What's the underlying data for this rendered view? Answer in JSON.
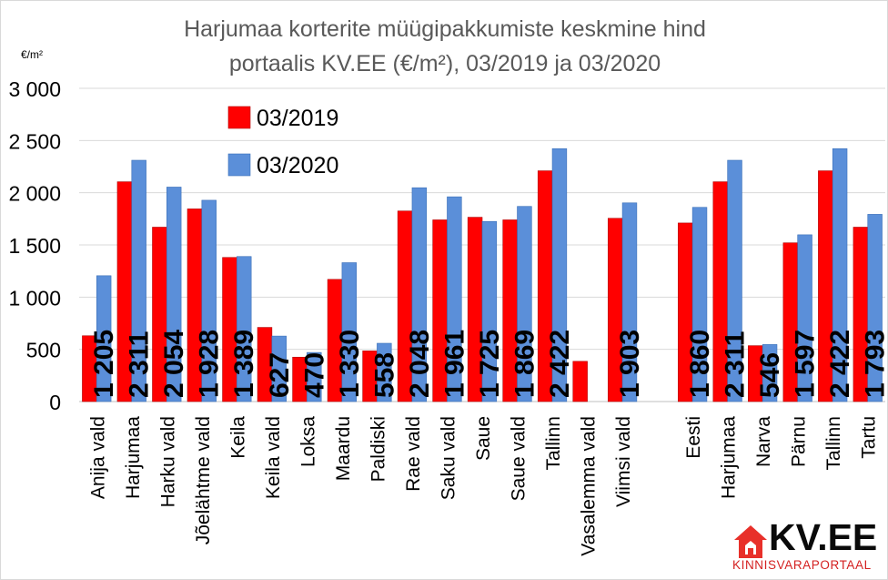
{
  "chart_data": {
    "type": "bar",
    "title_lines": [
      "Harjumaa korterite müügipakkumiste keskmine hind",
      "portaalis KV.EE (€/m²), 03/2019 ja 03/2020"
    ],
    "ylabel": "€/m²",
    "ylim": [
      0,
      3000
    ],
    "yticks": [
      0,
      500,
      1000,
      1500,
      2000,
      2500,
      3000
    ],
    "ytick_labels": [
      "0",
      "500",
      "1 000",
      "1 500",
      "2 000",
      "2 500",
      "3 000"
    ],
    "grid": true,
    "legend_position": "top-left",
    "categories": [
      "Anija vald",
      "Harjumaa",
      "Harku vald",
      "Jõelähtme vald",
      "Keila",
      "Keila vald",
      "Loksa",
      "Maardu",
      "Paldiski",
      "Rae vald",
      "Saku vald",
      "Saue",
      "Saue vald",
      "Tallinn",
      "Vasalemma vald",
      "Viimsi vald",
      "",
      "Eesti",
      "Harjumaa",
      "Narva",
      "Pärnu",
      "Tallinn",
      "Tartu"
    ],
    "series": [
      {
        "name": "03/2019",
        "color": "#ff0000",
        "values": [
          630,
          2105,
          1670,
          1845,
          1380,
          710,
          425,
          1170,
          485,
          1825,
          1740,
          1765,
          1740,
          2210,
          385,
          1755,
          null,
          1710,
          2105,
          535,
          1520,
          2210,
          1670
        ]
      },
      {
        "name": "03/2020",
        "color": "#5b8fd9",
        "values": [
          1205,
          2311,
          2054,
          1928,
          1389,
          627,
          470,
          1330,
          558,
          2048,
          1961,
          1725,
          1869,
          2422,
          null,
          1903,
          null,
          1860,
          2311,
          546,
          1597,
          2422,
          1793
        ],
        "data_labels": [
          "1 205",
          "2 311",
          "2 054",
          "1 928",
          "1 389",
          "627",
          "470",
          "1 330",
          "558",
          "2 048",
          "1 961",
          "1 725",
          "1 869",
          "2 422",
          "",
          "1 903",
          "",
          "1 860",
          "2 311",
          "546",
          "1 597",
          "2 422",
          "1 793"
        ]
      }
    ]
  },
  "logo": {
    "text": "KV.EE",
    "subtitle": "KINNISVARAPORTAAL",
    "house_color": "#e8302a"
  }
}
